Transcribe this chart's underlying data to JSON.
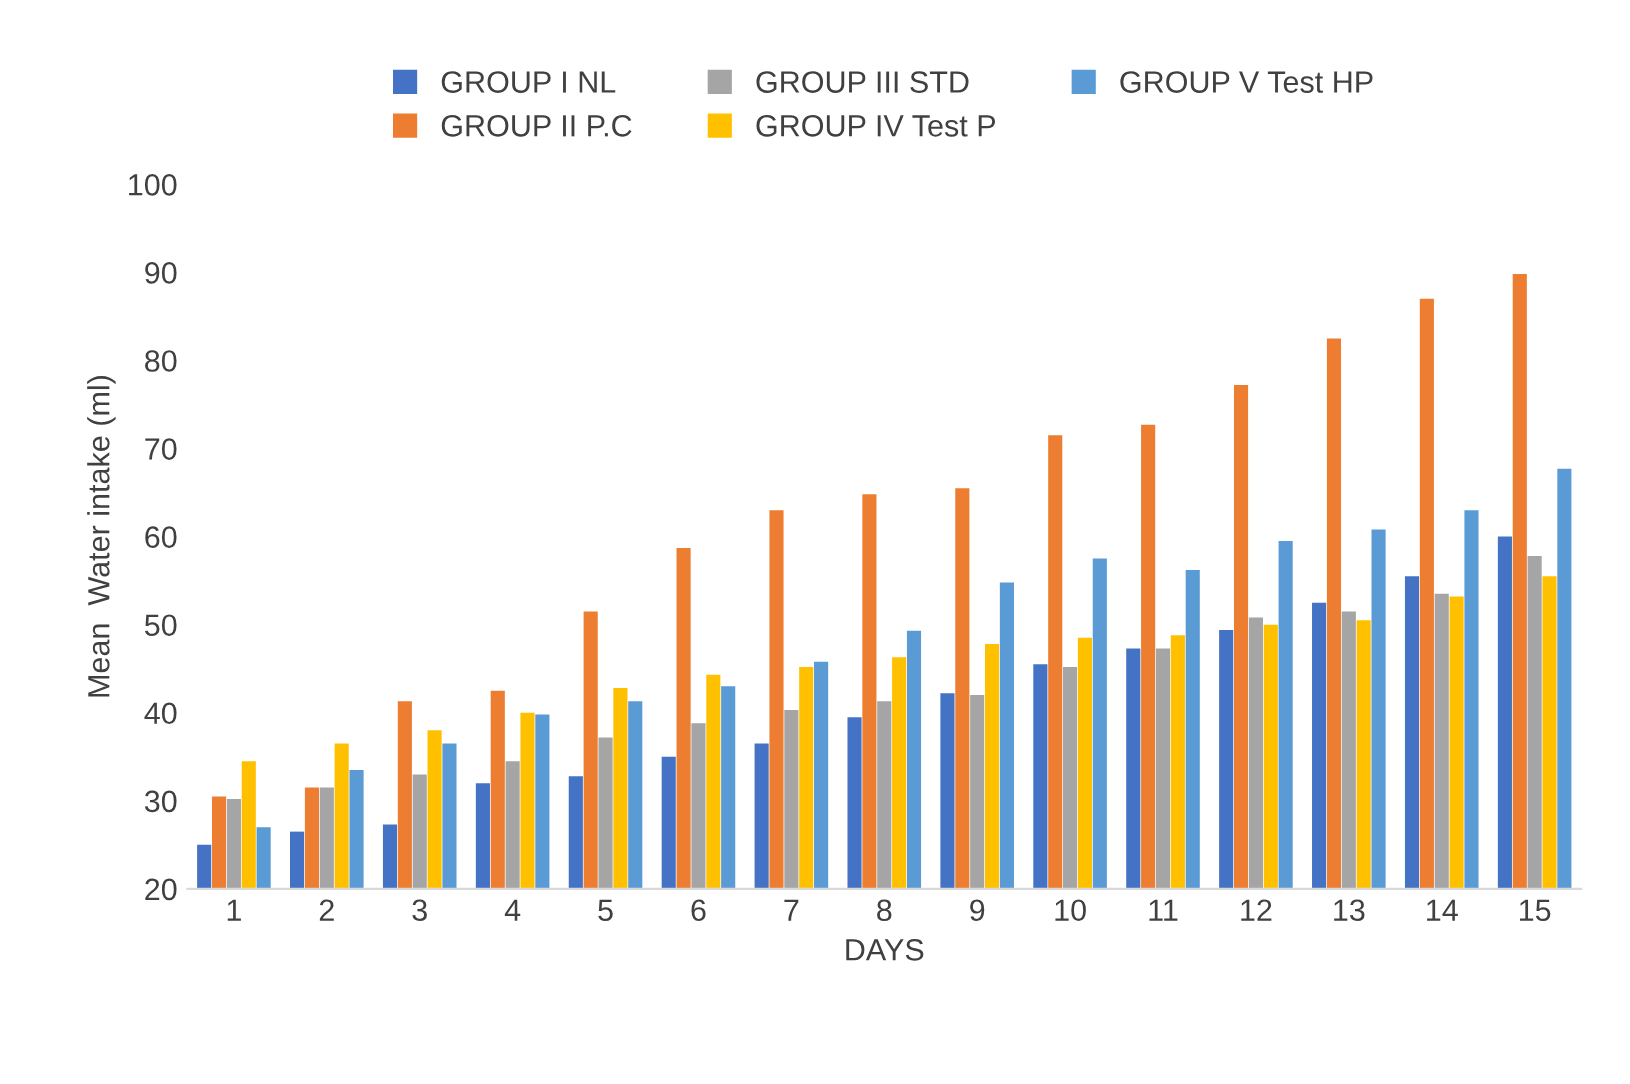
{
  "chart_data": {
    "type": "bar",
    "xlabel": "DAYS",
    "ylabel": "Mean  Water intake (ml)",
    "categories": [
      "1",
      "2",
      "3",
      "4",
      "5",
      "6",
      "7",
      "8",
      "9",
      "10",
      "11",
      "12",
      "13",
      "14",
      "15"
    ],
    "series": [
      {
        "name": "GROUP I NL",
        "color": "#4472c4",
        "values": [
          25,
          26.5,
          27.3,
          32,
          32.8,
          35,
          36.5,
          39.5,
          42.2,
          45.5,
          47.3,
          49.4,
          52.5,
          55.5,
          60
        ]
      },
      {
        "name": "GROUP II P.C",
        "color": "#ed7d31",
        "values": [
          30.5,
          31.5,
          41.3,
          42.5,
          51.5,
          58.7,
          63,
          64.8,
          65.5,
          71.5,
          72.7,
          77.2,
          82.5,
          87,
          89.8
        ]
      },
      {
        "name": "GROUP III STD",
        "color": "#a5a5a5",
        "values": [
          30.2,
          31.5,
          33,
          34.5,
          37.2,
          38.8,
          40.3,
          41.3,
          42,
          45.2,
          47.3,
          50.8,
          51.5,
          53.5,
          57.8
        ]
      },
      {
        "name": "GROUP IV Test P",
        "color": "#ffc000",
        "values": [
          34.5,
          36.5,
          38,
          40,
          42.8,
          44.3,
          45.2,
          46.3,
          47.8,
          48.5,
          48.8,
          50,
          50.5,
          53.2,
          55.5
        ]
      },
      {
        "name": "GROUP V Test HP",
        "color": "#5b9bd5",
        "values": [
          27,
          33.5,
          36.5,
          39.8,
          41.3,
          43,
          45.8,
          49.3,
          54.8,
          57.5,
          56.2,
          59.5,
          60.8,
          63,
          67.7
        ]
      }
    ],
    "ylim": [
      20,
      100
    ],
    "yticks": [
      20,
      30,
      40,
      50,
      60,
      70,
      80,
      90,
      100
    ],
    "grid": false,
    "legend": "top"
  }
}
